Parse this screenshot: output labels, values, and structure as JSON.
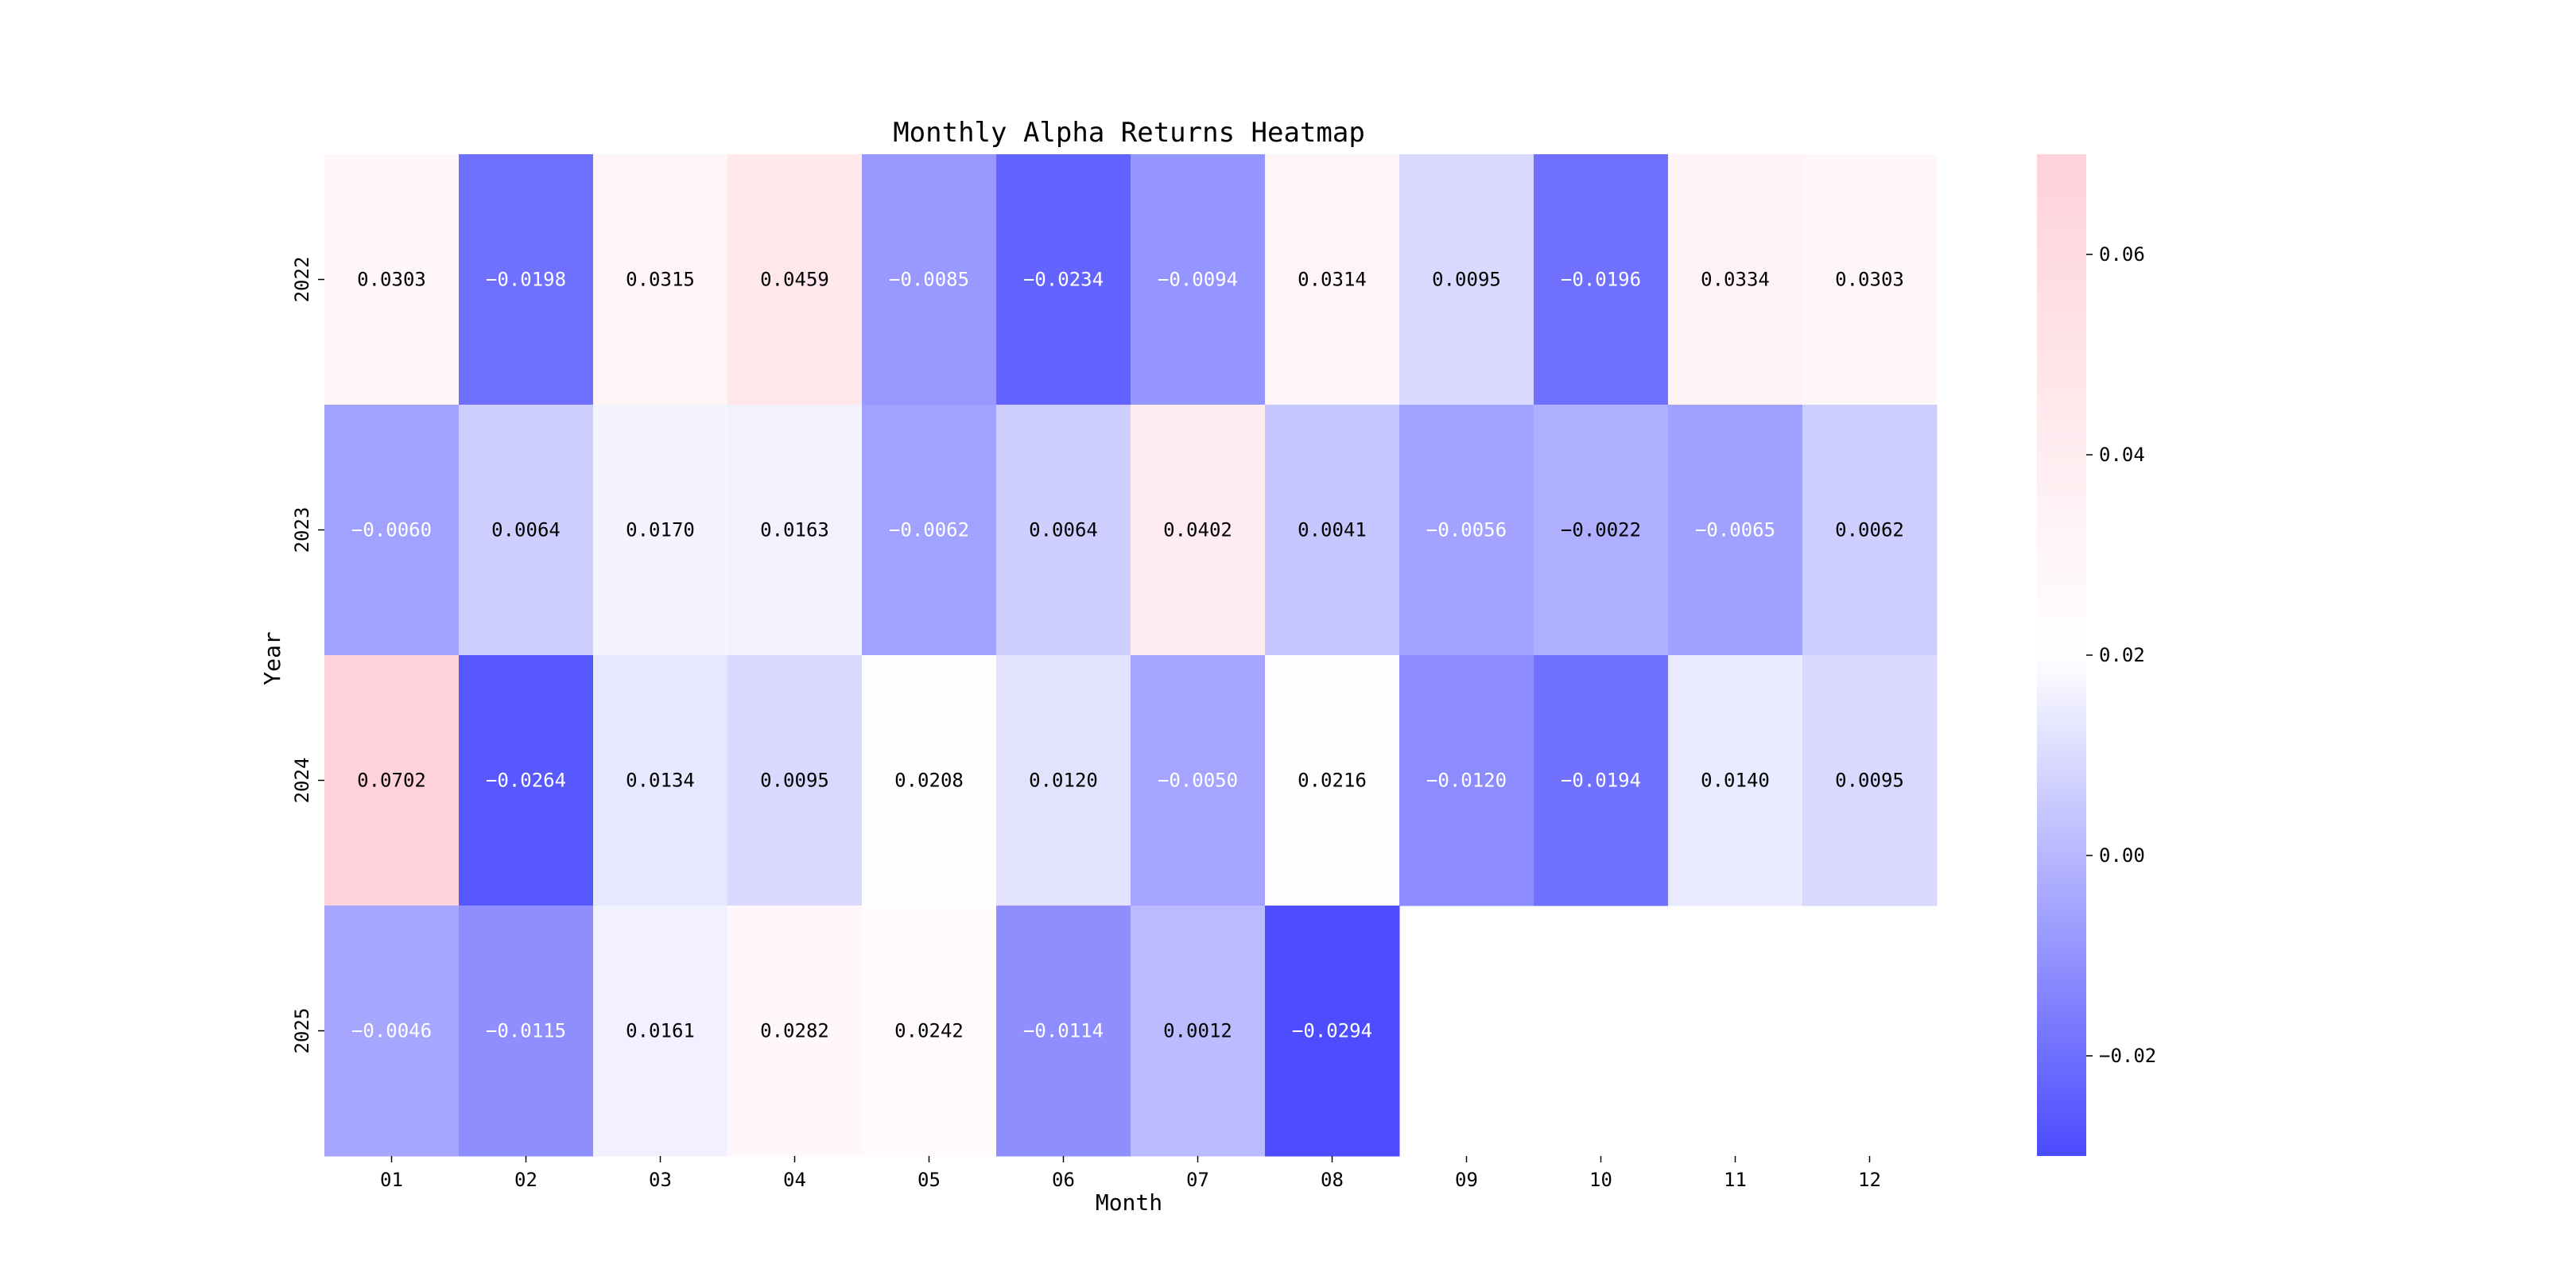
{
  "chart_data": {
    "type": "heatmap",
    "title": "Monthly Alpha Returns Heatmap",
    "xlabel": "Month",
    "ylabel": "Year",
    "x": [
      "01",
      "02",
      "03",
      "04",
      "05",
      "06",
      "07",
      "08",
      "09",
      "10",
      "11",
      "12"
    ],
    "y": [
      "2022",
      "2023",
      "2024",
      "2025"
    ],
    "values": [
      [
        0.0303,
        -0.0198,
        0.0315,
        0.0459,
        -0.0085,
        -0.0234,
        -0.0094,
        0.0314,
        0.0095,
        -0.0196,
        0.0334,
        0.0303
      ],
      [
        -0.006,
        0.0064,
        0.017,
        0.0163,
        -0.0062,
        0.0064,
        0.0402,
        0.0041,
        -0.0056,
        -0.0022,
        -0.0065,
        0.0062
      ],
      [
        0.0702,
        -0.0264,
        0.0134,
        0.0095,
        0.0208,
        0.012,
        -0.005,
        0.0216,
        -0.012,
        -0.0194,
        0.014,
        0.0095
      ],
      [
        -0.0046,
        -0.0115,
        0.0161,
        0.0282,
        0.0242,
        -0.0114,
        0.0012,
        -0.0294,
        null,
        null,
        null,
        null
      ]
    ],
    "value_format_decimals": 4,
    "colormap": {
      "vmin": -0.03,
      "vcenter": 0.02,
      "vmax": 0.07,
      "low_color": "#4b4bff",
      "center_color": "#ffffff",
      "high_color": "#ffd1da"
    },
    "colorbar": {
      "ticks": [
        -0.02,
        0.0,
        0.02,
        0.04,
        0.06
      ],
      "tick_labels": [
        "−0.02",
        "0.00",
        "0.02",
        "0.04",
        "0.06"
      ],
      "placement": "right"
    }
  }
}
